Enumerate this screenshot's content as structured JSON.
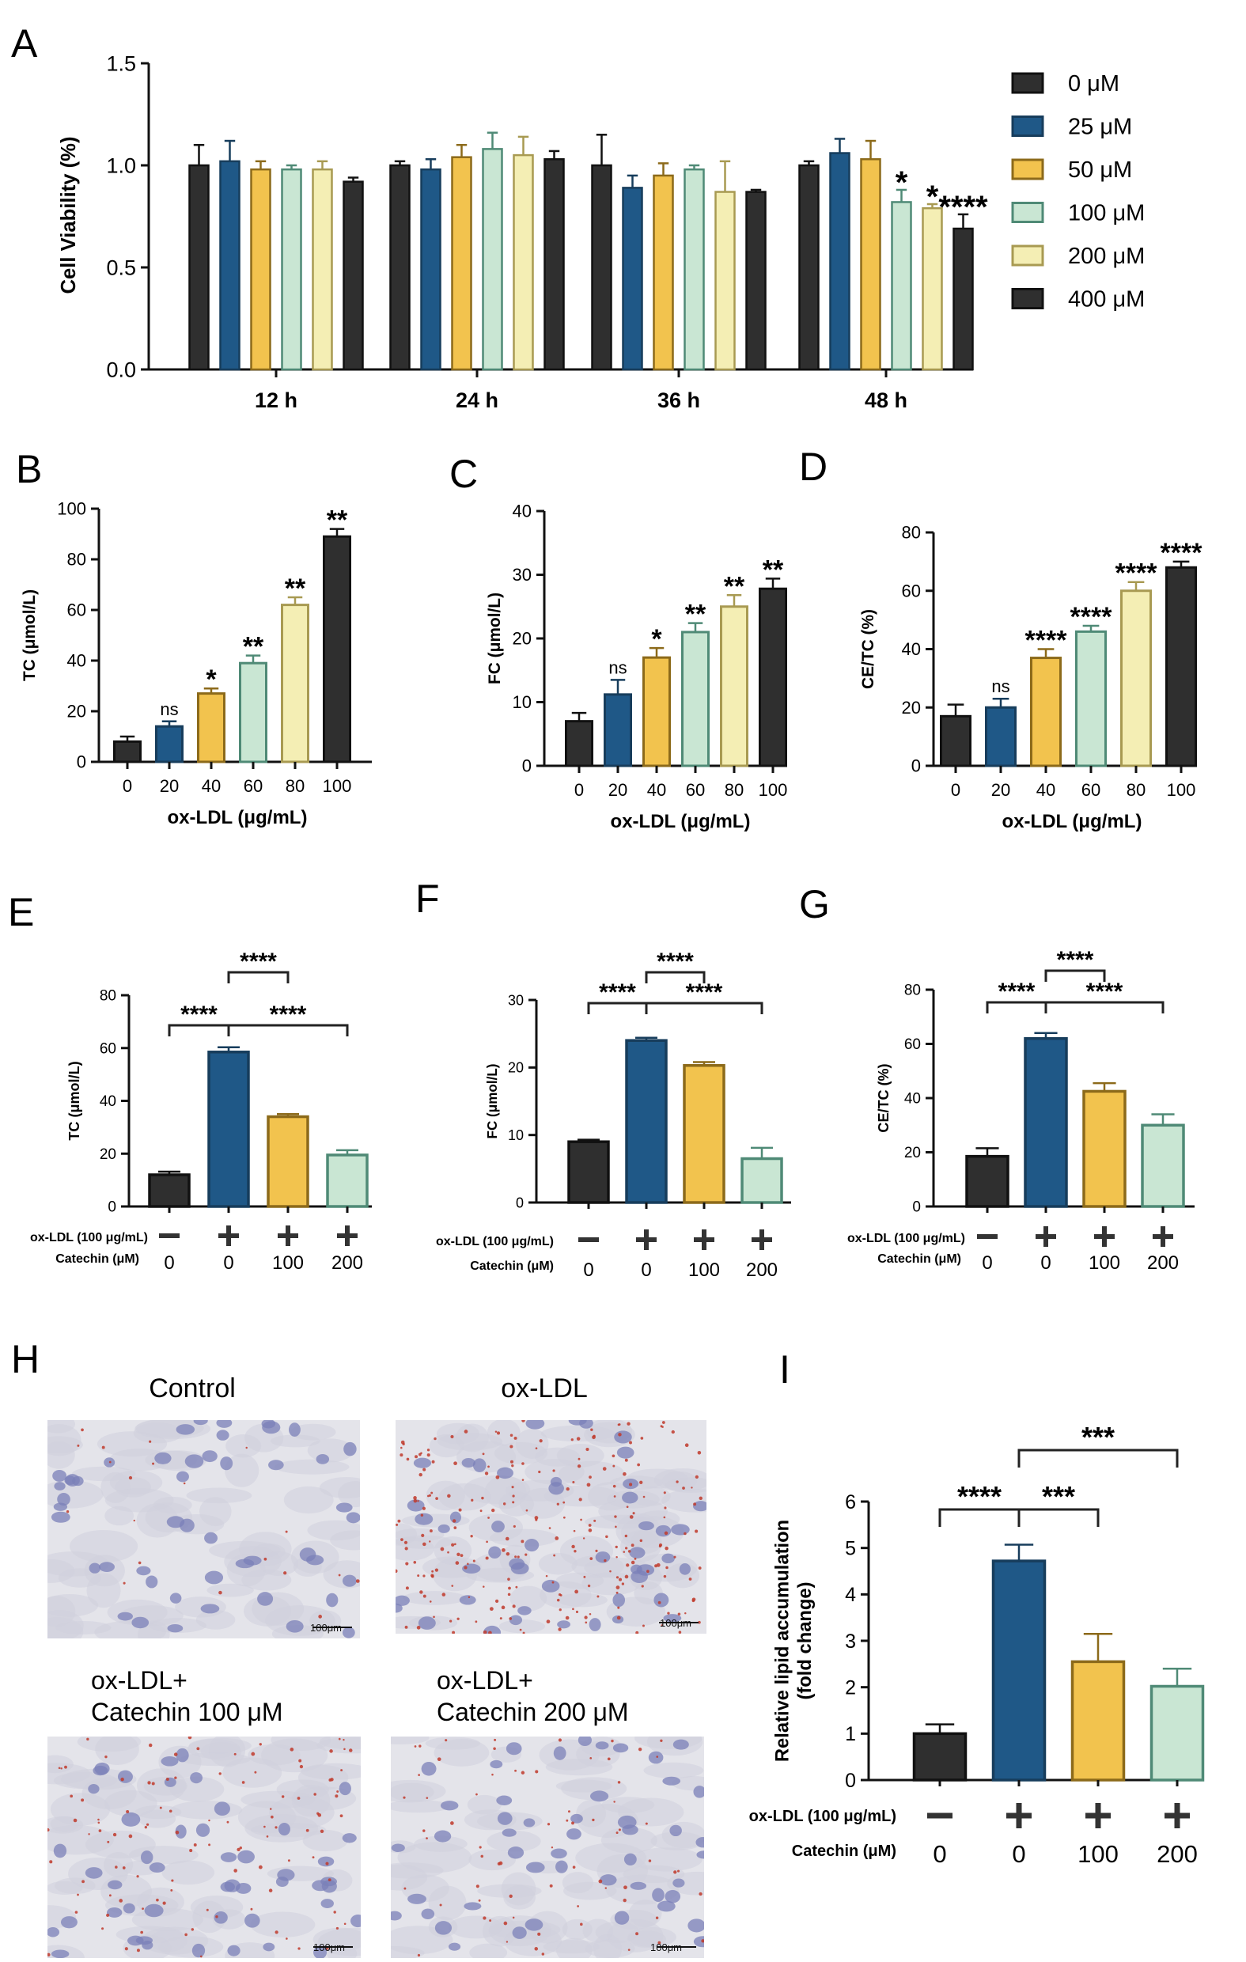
{
  "figure": {
    "panel_labels": [
      "A",
      "B",
      "C",
      "D",
      "E",
      "F",
      "G",
      "H",
      "I"
    ],
    "colors": {
      "c0": "#2f2f2f",
      "c25": "#1f5887",
      "c50": "#f2c34e",
      "c100": "#c9e6d3",
      "c200": "#f4eeb4",
      "c400": "#2f2f2f",
      "edge_blue": "#173d5c",
      "edge_yellow": "#8c6a1a",
      "edge_green": "#4f8a76",
      "edge_cream": "#a89a52",
      "edge_dark": "#111111"
    }
  },
  "chart_data": [
    {
      "id": "A",
      "type": "bar",
      "title": "",
      "xlabel": "",
      "ylabel": "Cell Viability (%)",
      "ylim": [
        0,
        1.5
      ],
      "yticks": [
        "0.0",
        "0.5",
        "1.0",
        "1.5"
      ],
      "categories": [
        "12 h",
        "24 h",
        "36 h",
        "48 h"
      ],
      "series": [
        {
          "name": "0 μM",
          "color": "#2f2f2f",
          "edge": "#111111",
          "values": [
            1.0,
            1.0,
            1.0,
            1.0
          ],
          "errors": [
            0.1,
            0.02,
            0.15,
            0.02
          ]
        },
        {
          "name": "25 μM",
          "color": "#1f5887",
          "edge": "#173d5c",
          "values": [
            1.02,
            0.98,
            0.89,
            1.06
          ],
          "errors": [
            0.1,
            0.05,
            0.06,
            0.07
          ]
        },
        {
          "name": "50 μM",
          "color": "#f2c34e",
          "edge": "#8c6a1a",
          "values": [
            0.98,
            1.04,
            0.95,
            1.03
          ],
          "errors": [
            0.04,
            0.06,
            0.06,
            0.09
          ]
        },
        {
          "name": "100 μM",
          "color": "#c9e6d3",
          "edge": "#4f8a76",
          "values": [
            0.98,
            1.08,
            0.98,
            0.82
          ],
          "errors": [
            0.02,
            0.08,
            0.02,
            0.06
          ]
        },
        {
          "name": "200 μM",
          "color": "#f4eeb4",
          "edge": "#a89a52",
          "values": [
            0.98,
            1.05,
            0.87,
            0.79
          ],
          "errors": [
            0.04,
            0.09,
            0.15,
            0.02
          ]
        },
        {
          "name": "400 μM",
          "color": "#2f2f2f",
          "edge": "#111111",
          "values": [
            0.92,
            1.03,
            0.87,
            0.69
          ],
          "errors": [
            0.02,
            0.04,
            0.01,
            0.07
          ]
        }
      ],
      "annotations": [
        {
          "group": 3,
          "series": 3,
          "text": "*"
        },
        {
          "group": 3,
          "series": 4,
          "text": "*"
        },
        {
          "group": 3,
          "series": 5,
          "text": "****"
        }
      ],
      "legend": "right"
    },
    {
      "id": "B",
      "type": "bar",
      "xlabel": "ox-LDL (μg/mL)",
      "ylabel": "TC (μmol/L)",
      "ylim": [
        0,
        100
      ],
      "yticks": [
        "0",
        "20",
        "40",
        "60",
        "80",
        "100"
      ],
      "categories": [
        "0",
        "20",
        "40",
        "60",
        "80",
        "100"
      ],
      "values": [
        8,
        14,
        27,
        39,
        62,
        89
      ],
      "errors": [
        2,
        2,
        2,
        3,
        3,
        3
      ],
      "annotations": [
        "",
        "ns",
        "*",
        "**",
        "**",
        "**"
      ]
    },
    {
      "id": "C",
      "type": "bar",
      "xlabel": "ox-LDL (μg/mL)",
      "ylabel": "FC (μmol/L)",
      "ylim": [
        0,
        40
      ],
      "yticks": [
        "0",
        "10",
        "20",
        "30",
        "40"
      ],
      "categories": [
        "0",
        "20",
        "40",
        "60",
        "80",
        "100"
      ],
      "values": [
        7,
        11.2,
        17,
        21,
        25,
        27.8
      ],
      "errors": [
        1.3,
        2.3,
        1.5,
        1.4,
        1.8,
        1.6
      ],
      "annotations": [
        "",
        "ns",
        "*",
        "**",
        "**",
        "**"
      ]
    },
    {
      "id": "D",
      "type": "bar",
      "xlabel": "ox-LDL (μg/mL)",
      "ylabel": "CE/TC (%)",
      "ylim": [
        0,
        80
      ],
      "yticks": [
        "0",
        "20",
        "40",
        "60",
        "80"
      ],
      "categories": [
        "0",
        "20",
        "40",
        "60",
        "80",
        "100"
      ],
      "values": [
        17,
        20,
        37,
        46,
        60,
        68
      ],
      "errors": [
        4,
        3,
        3,
        2,
        3,
        2
      ],
      "annotations": [
        "",
        "ns",
        "****",
        "****",
        "****",
        "****"
      ]
    },
    {
      "id": "E",
      "type": "bar",
      "ylabel": "TC (μmol/L)",
      "ylim": [
        0,
        80
      ],
      "yticks": [
        "0",
        "20",
        "40",
        "60",
        "80"
      ],
      "values": [
        12,
        58.5,
        34,
        19.5
      ],
      "errors": [
        1.2,
        1.8,
        1,
        1.8
      ],
      "row_labels": {
        "oxldl": "ox-LDL (100 μg/mL)",
        "catechin": "Catechin (μM)"
      },
      "oxldl_signs": [
        "−",
        "+",
        "+",
        "+"
      ],
      "catechin_doses": [
        "0",
        "0",
        "100",
        "200"
      ],
      "brackets": [
        {
          "from": 0,
          "to": 1,
          "text": "****",
          "level": 0
        },
        {
          "from": 1,
          "to": 2,
          "text": "****",
          "level": 1
        },
        {
          "from": 1,
          "to": 3,
          "text": "****",
          "level": 0
        }
      ]
    },
    {
      "id": "F",
      "type": "bar",
      "ylabel": "FC (μmol/L)",
      "ylim": [
        0,
        30
      ],
      "yticks": [
        "0",
        "10",
        "20",
        "30"
      ],
      "values": [
        9,
        24,
        20.3,
        6.5
      ],
      "errors": [
        0.3,
        0.4,
        0.5,
        1.6
      ],
      "row_labels": {
        "oxldl": "ox-LDL (100 μg/mL)",
        "catechin": "Catechin (μM)"
      },
      "oxldl_signs": [
        "−",
        "+",
        "+",
        "+"
      ],
      "catechin_doses": [
        "0",
        "0",
        "100",
        "200"
      ],
      "brackets": [
        {
          "from": 0,
          "to": 1,
          "text": "****",
          "level": 0
        },
        {
          "from": 1,
          "to": 2,
          "text": "****",
          "level": 1
        },
        {
          "from": 1,
          "to": 3,
          "text": "****",
          "level": 0
        }
      ]
    },
    {
      "id": "G",
      "type": "bar",
      "ylabel": "CE/TC (%)",
      "ylim": [
        0,
        80
      ],
      "yticks": [
        "0",
        "20",
        "40",
        "60",
        "80"
      ],
      "values": [
        18.5,
        62,
        42.5,
        30
      ],
      "errors": [
        3,
        2,
        3,
        4
      ],
      "row_labels": {
        "oxldl": "ox-LDL (100 μg/mL)",
        "catechin": "Catechin (μM)"
      },
      "oxldl_signs": [
        "−",
        "+",
        "+",
        "+"
      ],
      "catechin_doses": [
        "0",
        "0",
        "100",
        "200"
      ],
      "brackets": [
        {
          "from": 0,
          "to": 1,
          "text": "****",
          "level": 0
        },
        {
          "from": 1,
          "to": 2,
          "text": "****",
          "level": 1
        },
        {
          "from": 1,
          "to": 3,
          "text": "****",
          "level": 0
        }
      ]
    },
    {
      "id": "I",
      "type": "bar",
      "ylabel": "Relative lipid accumulation\n(fold change)",
      "ylim": [
        0,
        6
      ],
      "yticks": [
        "0",
        "1",
        "2",
        "3",
        "4",
        "5",
        "6"
      ],
      "values": [
        1.0,
        4.72,
        2.55,
        2.02
      ],
      "errors": [
        0.2,
        0.35,
        0.6,
        0.38
      ],
      "row_labels": {
        "oxldl": "ox-LDL (100 μg/mL)",
        "catechin": "Catechin (μM)"
      },
      "oxldl_signs": [
        "−",
        "+",
        "+",
        "+"
      ],
      "catechin_doses": [
        "0",
        "0",
        "100",
        "200"
      ],
      "brackets": [
        {
          "from": 0,
          "to": 1,
          "text": "****",
          "level": 0
        },
        {
          "from": 1,
          "to": 2,
          "text": "***",
          "level": 0
        },
        {
          "from": 1,
          "to": 3,
          "text": "***",
          "level": 1
        }
      ]
    }
  ],
  "panel_h": {
    "titles": [
      "Control",
      "ox-LDL",
      "ox-LDL+\nCatechin 100 μM",
      "ox-LDL+\nCatechin 200 μM"
    ],
    "scale_bar": "100μm"
  }
}
